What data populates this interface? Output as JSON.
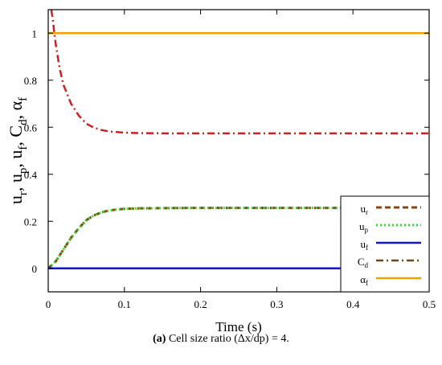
{
  "chart_data": {
    "type": "line",
    "xlabel": "Time (s)",
    "ylabel_parts": [
      "u",
      "r",
      ", u",
      "p",
      ", u",
      "f",
      ", C",
      "d",
      ", α",
      "f"
    ],
    "xlim": [
      0,
      0.5
    ],
    "ylim": [
      -0.1,
      1.1
    ],
    "x_ticks": [
      0,
      0.1,
      0.2,
      0.3,
      0.4,
      0.5
    ],
    "x_tick_labels": [
      "0",
      "0.1",
      "0.2",
      "0.3",
      "0.4",
      "0.5"
    ],
    "y_ticks": [
      0,
      0.2,
      0.4,
      0.6,
      0.8,
      1
    ],
    "y_tick_labels": [
      "0",
      "0.2",
      "0.4",
      "0.6",
      "0.8",
      "1"
    ],
    "grid": false,
    "legend_position": "bottom-right",
    "series": [
      {
        "name": "ur",
        "label_main": "u",
        "label_sub": "r",
        "color": "#8B4513",
        "dash": "7,4",
        "width": 3,
        "x": [
          0,
          0.01,
          0.02,
          0.03,
          0.04,
          0.05,
          0.06,
          0.07,
          0.08,
          0.09,
          0.1,
          0.12,
          0.15,
          0.2,
          0.3,
          0.4,
          0.5
        ],
        "y": [
          0,
          0.03,
          0.08,
          0.13,
          0.17,
          0.205,
          0.225,
          0.238,
          0.246,
          0.25,
          0.253,
          0.255,
          0.256,
          0.257,
          0.257,
          0.257,
          0.257
        ]
      },
      {
        "name": "up",
        "label_main": "u",
        "label_sub": "p",
        "color": "#33DD33",
        "dash": "2,3",
        "width": 3,
        "x": [
          0,
          0.01,
          0.02,
          0.03,
          0.04,
          0.05,
          0.06,
          0.07,
          0.08,
          0.09,
          0.1,
          0.12,
          0.15,
          0.2,
          0.3,
          0.4,
          0.5
        ],
        "y": [
          0,
          0.03,
          0.08,
          0.13,
          0.17,
          0.205,
          0.225,
          0.238,
          0.246,
          0.25,
          0.253,
          0.255,
          0.256,
          0.257,
          0.257,
          0.257,
          0.257
        ]
      },
      {
        "name": "uf",
        "label_main": "u",
        "label_sub": "f",
        "color": "#1515CC",
        "dash": "",
        "width": 2.5,
        "x": [
          0,
          0.5
        ],
        "y": [
          0,
          0
        ]
      },
      {
        "name": "Cd",
        "label_main": "C",
        "label_sub": "d",
        "color": "#CC2222",
        "dash": "9,4,2,4",
        "width": 2.5,
        "x": [
          0.004,
          0.006,
          0.008,
          0.01,
          0.015,
          0.02,
          0.03,
          0.04,
          0.05,
          0.06,
          0.07,
          0.08,
          0.1,
          0.12,
          0.15,
          0.2,
          0.3,
          0.4,
          0.5
        ],
        "y": [
          1.1,
          1.06,
          1.0,
          0.95,
          0.85,
          0.78,
          0.7,
          0.65,
          0.615,
          0.598,
          0.588,
          0.582,
          0.577,
          0.575,
          0.574,
          0.574,
          0.574,
          0.574,
          0.574
        ]
      },
      {
        "name": "af",
        "label_main": "α",
        "label_sub": "f",
        "color": "#F0A000",
        "dash": "",
        "width": 2.5,
        "x": [
          0,
          0.5
        ],
        "y": [
          1,
          1
        ]
      }
    ],
    "legend_samples": [
      {
        "color": "#8B4513",
        "dash": "7,4",
        "width": 3
      },
      {
        "color": "#33DD33",
        "dash": "2,3",
        "width": 3
      },
      {
        "color": "#1515CC",
        "dash": "",
        "width": 2.5
      },
      {
        "color": "#6B4A1A",
        "dash": "9,4,2,4",
        "width": 2.5
      },
      {
        "color": "#F0A000",
        "dash": "",
        "width": 2.5
      }
    ]
  },
  "caption": {
    "label": "(a)",
    "text": " Cell size ratio (Δx/dp) = 4."
  }
}
